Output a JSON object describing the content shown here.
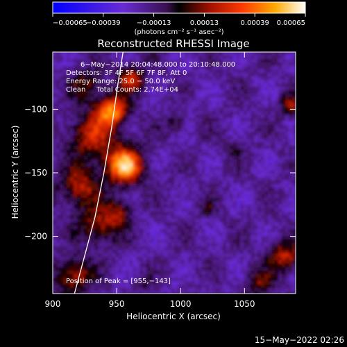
{
  "chart_data": {
    "type": "heatmap",
    "title": "Reconstructed RHESSI Image",
    "xlabel": "Heliocentric X (arcsec)",
    "ylabel": "Heliocentric Y (arcsec)",
    "xlim": [
      900,
      1090
    ],
    "ylim": [
      -245,
      -55
    ],
    "x_ticks": [
      900,
      950,
      1000,
      1050
    ],
    "x_tick_labels": [
      "900",
      "950",
      "1000",
      "1050"
    ],
    "y_ticks": [
      -100,
      -150,
      -200
    ],
    "y_tick_labels": [
      "−100",
      "−150",
      "−200"
    ],
    "colorbar": {
      "range": [
        -0.00065,
        0.00065
      ],
      "ticks": [
        -0.00065,
        -0.00039,
        -0.00013,
        0.00013,
        0.00039,
        0.00065
      ],
      "tick_labels": [
        "−0.00065",
        "−0.00039",
        "−0.00013",
        "0.00013",
        "0.00039",
        "0.00065"
      ],
      "units": "(photons cm⁻² s⁻¹ asec⁻²)"
    },
    "annotations": [
      "6−May−2014 20:04:48.000 to 20:10:48.000",
      "Detectors: 3F 4F 5F 6F 7F 8F, Att 0",
      "Energy Range: 25.0 − 50.0 keV",
      "Clean     Total Counts: 2.74E+04"
    ],
    "peak_label": "Position of Peak = [955,−143]",
    "peak": [
      955,
      -143
    ],
    "limb_curve": [
      [
        917,
        -245
      ],
      [
        925,
        -215
      ],
      [
        933,
        -185
      ],
      [
        940,
        -150
      ],
      [
        946,
        -115
      ],
      [
        951,
        -80
      ],
      [
        955,
        -55
      ]
    ]
  },
  "timestamp": "15−May−2022 02:26",
  "colors": {
    "background": "#000000",
    "text": "#ffffff"
  }
}
